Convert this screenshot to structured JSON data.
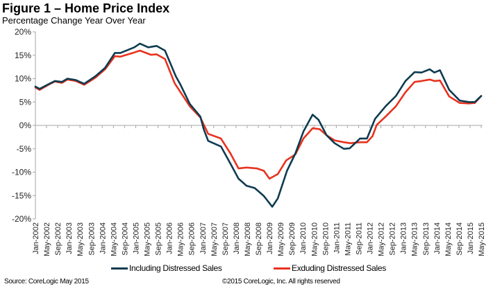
{
  "chart_data": {
    "type": "line",
    "title": "Figure 1 – Home Price Index",
    "subtitle": "Percentage Change Year Over Year",
    "xlabel": "",
    "ylabel": "",
    "x_unit": "months since Jan-2002",
    "xlim": [
      0,
      160
    ],
    "ylim": [
      -20,
      20
    ],
    "yticks": [
      20,
      15,
      10,
      5,
      0,
      -5,
      -10,
      -15,
      -20
    ],
    "ytick_labels": [
      "20%",
      "15%",
      "10%",
      "5%",
      "0%",
      "-5%",
      "-10%",
      "-15%",
      "-20%"
    ],
    "xtick_labels": [
      "Jan-2002",
      "May-2002",
      "Sep-2002",
      "Jan-2003",
      "May-2003",
      "Sep-2003",
      "Jan-2004",
      "May-2004",
      "Sep-2004",
      "Jan-2005",
      "May-2005",
      "Sep-2005",
      "Jan-2006",
      "May-2006",
      "Sep-2006",
      "Jan-2007",
      "May-2007",
      "Sep-2007",
      "Jan-2008",
      "May-2008",
      "Sep-2008",
      "Jan-2009",
      "May-2009",
      "Sep-2009",
      "Jan-2010",
      "May-2010",
      "Sep-2010",
      "Jan-2011",
      "May-2011",
      "Sep-2011",
      "Jan-2012",
      "May-2012",
      "Sep-2012",
      "Jan-2013",
      "May-2013",
      "Sep-2013",
      "Jan-2014",
      "May-2014",
      "Sep-2014",
      "Jan-2015",
      "May-2015"
    ],
    "grid": false,
    "legend_position": "bottom",
    "series": [
      {
        "name": "Including Distressed Sales",
        "color": "#0e3b50",
        "points": [
          [
            0,
            8.3
          ],
          [
            1.5,
            7.8
          ],
          [
            5,
            8.9
          ],
          [
            7,
            9.5
          ],
          [
            9.5,
            9.3
          ],
          [
            11.5,
            10.0
          ],
          [
            14.5,
            9.7
          ],
          [
            17.5,
            8.9
          ],
          [
            21.5,
            10.5
          ],
          [
            25,
            12.3
          ],
          [
            28.5,
            15.5
          ],
          [
            30.5,
            15.5
          ],
          [
            35.5,
            16.7
          ],
          [
            37.5,
            17.5
          ],
          [
            40.5,
            16.7
          ],
          [
            43.5,
            17.0
          ],
          [
            46.5,
            16.0
          ],
          [
            50.4,
            10.5
          ],
          [
            52,
            8.8
          ],
          [
            55.4,
            4.6
          ],
          [
            59.2,
            1.9
          ],
          [
            60.4,
            -0.8
          ],
          [
            62,
            -3.3
          ],
          [
            66.6,
            -4.5
          ],
          [
            70,
            -8.2
          ],
          [
            72.9,
            -11.4
          ],
          [
            75.8,
            -12.9
          ],
          [
            78.7,
            -13.4
          ],
          [
            82,
            -15.1
          ],
          [
            85,
            -17.4
          ],
          [
            87,
            -15.6
          ],
          [
            90.3,
            -9.7
          ],
          [
            93.3,
            -6.0
          ],
          [
            96.2,
            -1.3
          ],
          [
            99.5,
            2.3
          ],
          [
            101.6,
            1.2
          ],
          [
            104.5,
            -2.1
          ],
          [
            107.4,
            -3.8
          ],
          [
            110.7,
            -5.0
          ],
          [
            112.8,
            -4.9
          ],
          [
            116.5,
            -2.8
          ],
          [
            119,
            -2.8
          ],
          [
            121.9,
            1.4
          ],
          [
            125.7,
            4.1
          ],
          [
            129.4,
            6.3
          ],
          [
            132.8,
            9.5
          ],
          [
            136.1,
            11.4
          ],
          [
            138.6,
            11.3
          ],
          [
            141.5,
            12.0
          ],
          [
            143.2,
            11.3
          ],
          [
            145.2,
            11.8
          ],
          [
            148.5,
            7.6
          ],
          [
            152.3,
            5.3
          ],
          [
            155.6,
            5.0
          ],
          [
            157.7,
            5.0
          ],
          [
            160,
            6.3
          ]
        ]
      },
      {
        "name": "Exduding Distressed Sales",
        "color": "#e8321e",
        "points": [
          [
            0,
            8.1
          ],
          [
            1.5,
            7.6
          ],
          [
            5,
            8.8
          ],
          [
            7,
            9.4
          ],
          [
            9.5,
            9.1
          ],
          [
            11.5,
            9.8
          ],
          [
            14.5,
            9.5
          ],
          [
            17.5,
            8.7
          ],
          [
            21.5,
            10.2
          ],
          [
            25,
            12.0
          ],
          [
            28.5,
            14.8
          ],
          [
            30.5,
            14.7
          ],
          [
            35.5,
            15.6
          ],
          [
            37.5,
            16.0
          ],
          [
            41.5,
            15.1
          ],
          [
            43.5,
            15.2
          ],
          [
            46.5,
            14.2
          ],
          [
            50,
            9.0
          ],
          [
            55.4,
            4.1
          ],
          [
            59.2,
            1.7
          ],
          [
            62,
            -1.8
          ],
          [
            66.6,
            -2.8
          ],
          [
            70,
            -6.0
          ],
          [
            72.9,
            -9.2
          ],
          [
            75.8,
            -9.0
          ],
          [
            79.5,
            -9.2
          ],
          [
            82,
            -9.7
          ],
          [
            84,
            -11.4
          ],
          [
            87,
            -10.4
          ],
          [
            90,
            -7.5
          ],
          [
            93.3,
            -6.2
          ],
          [
            96.2,
            -2.8
          ],
          [
            99.5,
            -0.6
          ],
          [
            102,
            -0.8
          ],
          [
            104.5,
            -2.1
          ],
          [
            107.4,
            -3.2
          ],
          [
            110.7,
            -3.6
          ],
          [
            113,
            -3.8
          ],
          [
            116.5,
            -3.6
          ],
          [
            119,
            -3.6
          ],
          [
            121,
            -2.3
          ],
          [
            122.5,
            0.1
          ],
          [
            125.7,
            1.9
          ],
          [
            129.4,
            4.1
          ],
          [
            132.8,
            7.1
          ],
          [
            136.1,
            9.3
          ],
          [
            138.6,
            9.5
          ],
          [
            141.5,
            9.8
          ],
          [
            143.2,
            9.5
          ],
          [
            145.2,
            9.6
          ],
          [
            148.5,
            6.2
          ],
          [
            152.3,
            4.8
          ],
          [
            155.6,
            4.7
          ],
          [
            157.7,
            4.8
          ],
          [
            160,
            6.3
          ]
        ]
      }
    ]
  },
  "footer": {
    "source": "Source: CoreLogic  May 2015",
    "copyright": "©2015 CoreLogic, Inc. All rights reserved"
  }
}
